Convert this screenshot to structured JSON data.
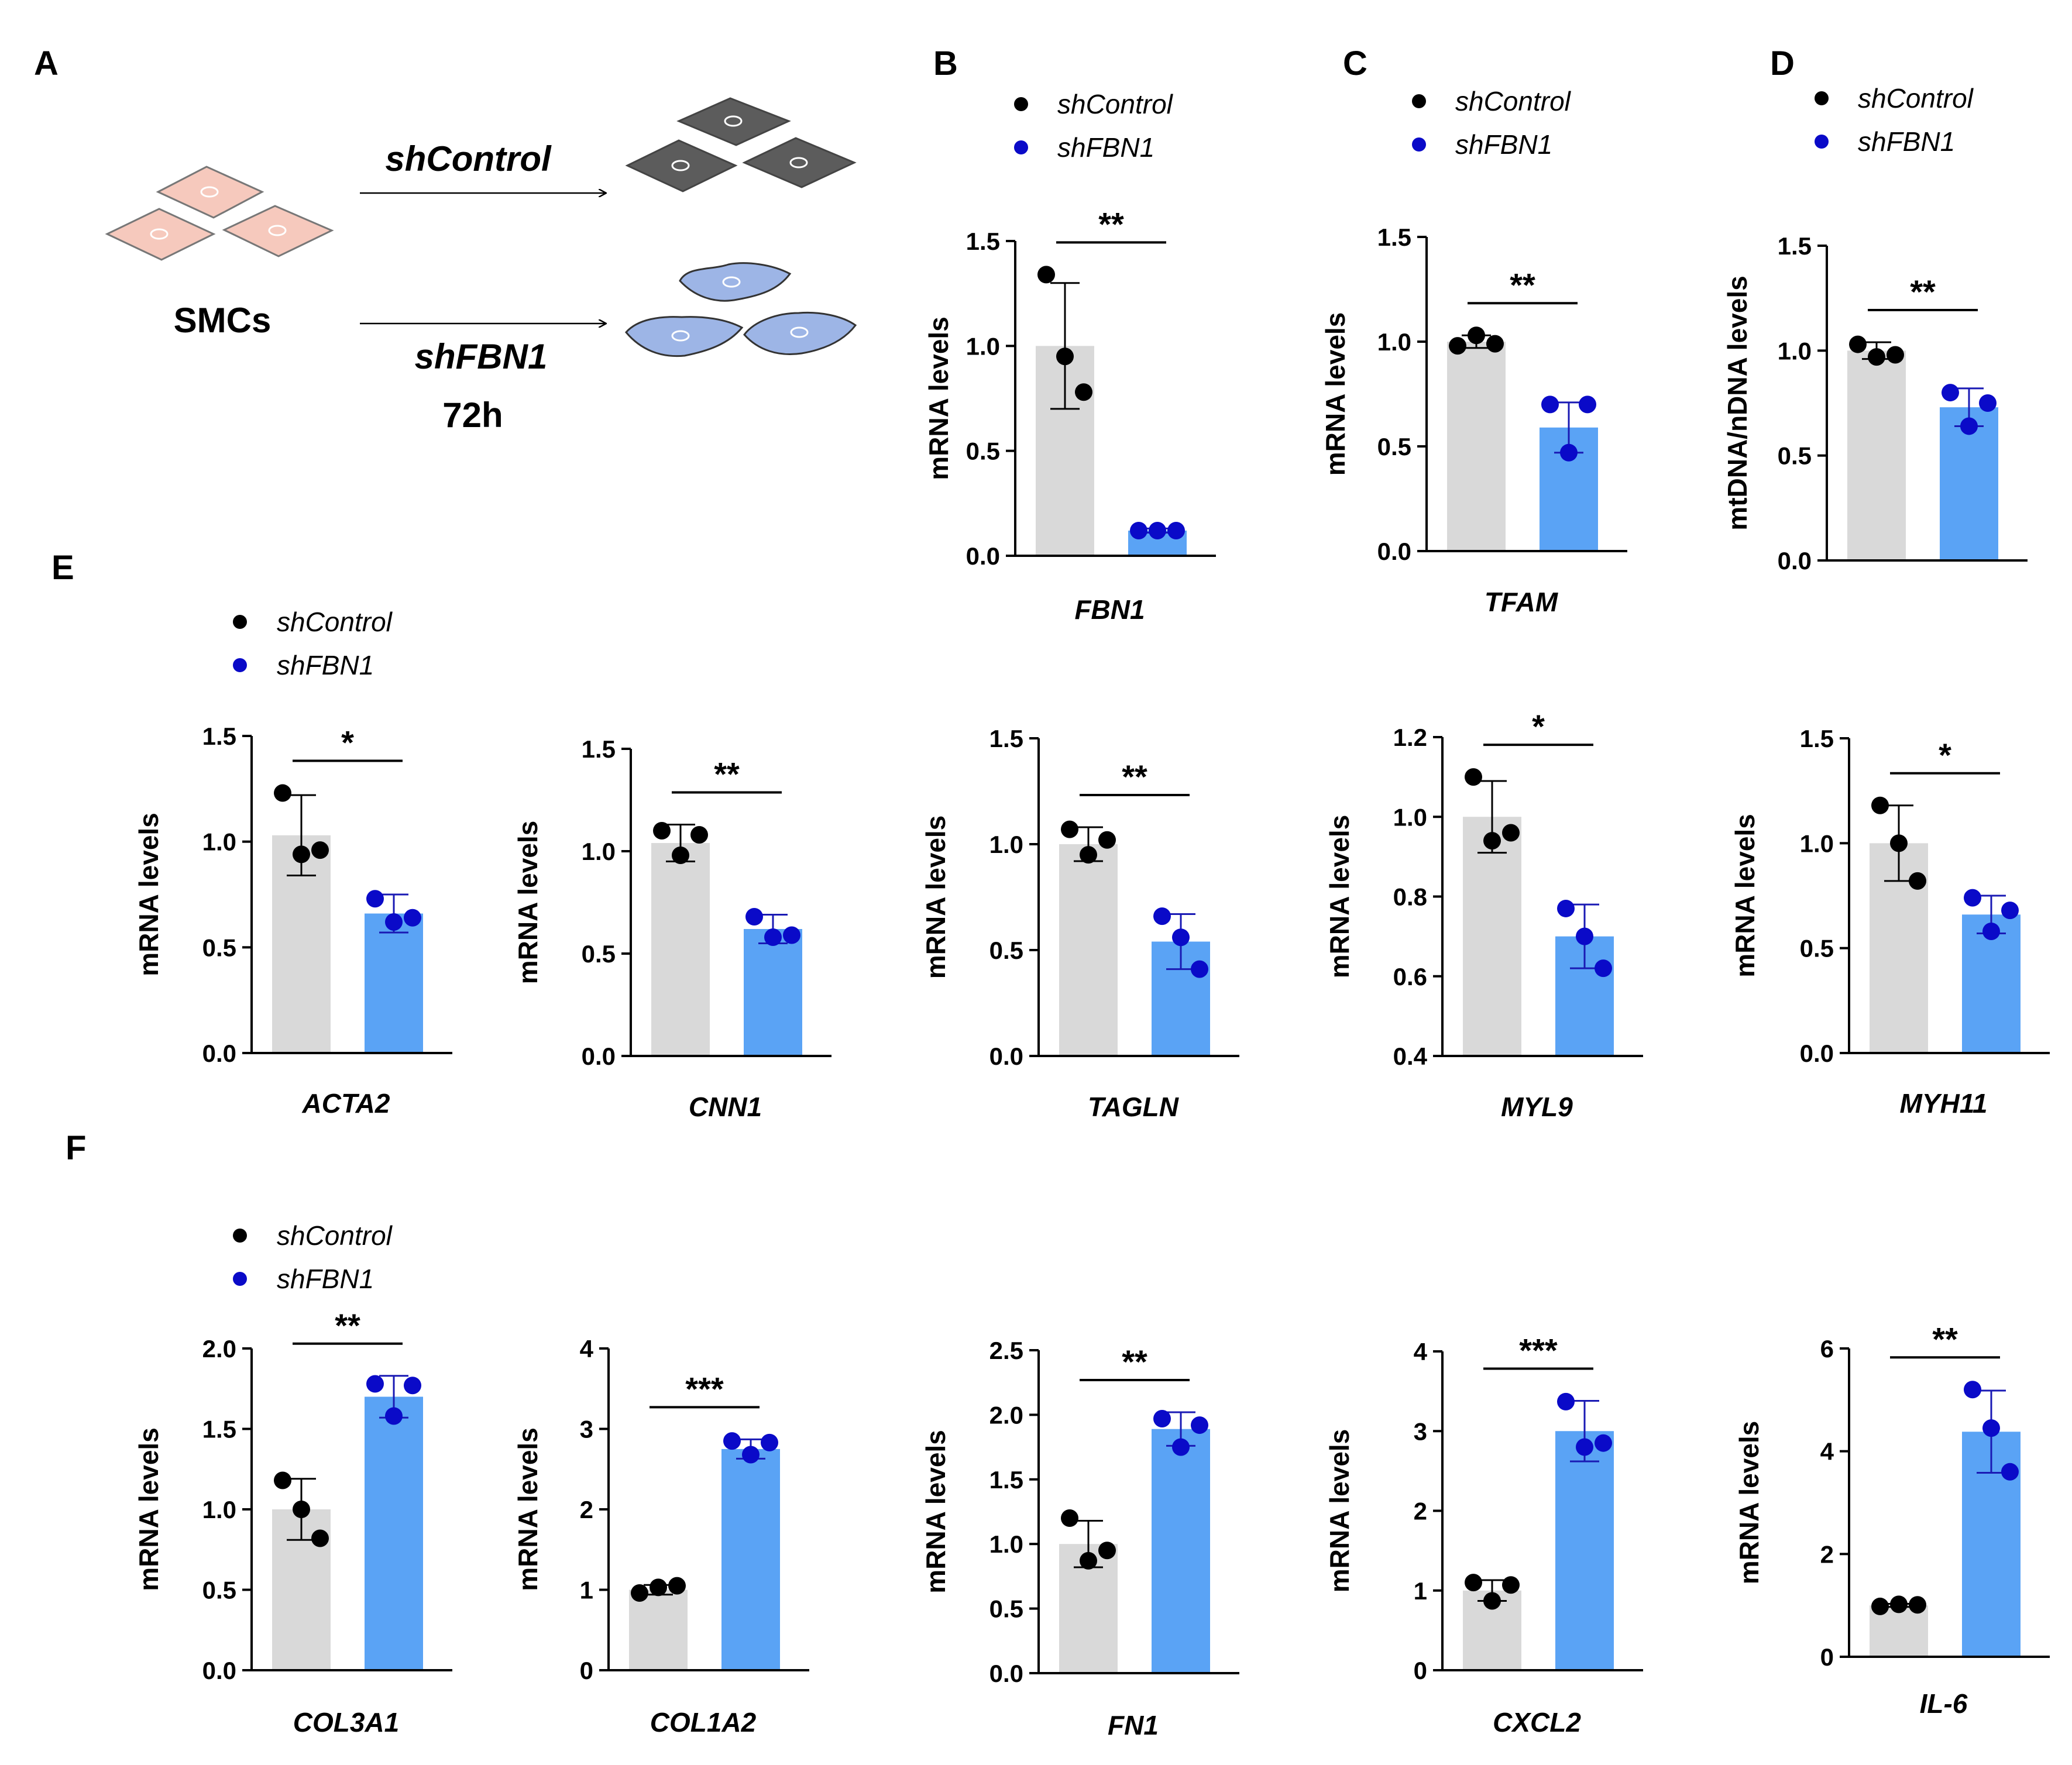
{
  "colors": {
    "control_bar": "#d9d9d9",
    "shfbn1_bar": "#5aa3f5",
    "control_dot": "#000000",
    "shfbn1_dot": "#0a0ac8",
    "shfbn1_errorbar": "#1a1ab4",
    "cell_pink": "#f6c9bd",
    "cell_gray": "#5c5c5c",
    "cell_blue": "#9db5e6"
  },
  "legend": {
    "control": "shControl",
    "shfbn1": "shFBN1"
  },
  "schematic": {
    "panel": "A",
    "cells_label": "SMCs",
    "arrow_top_label": "shControl",
    "arrow_bottom_label": "shFBN1",
    "duration": "72h"
  },
  "panel_labels": {
    "E": "E",
    "F": "F"
  },
  "chart_data": [
    {
      "id": "B",
      "type": "bar",
      "panel": "B",
      "gene": "FBN1",
      "ylabel": "mRNA levels",
      "ylim": [
        0,
        1.5
      ],
      "yticks": [
        "0.0",
        "0.5",
        "1.0",
        "1.5"
      ],
      "categories": [
        "shControl",
        "shFBN1"
      ],
      "series": [
        {
          "name": "shControl",
          "mean": 1.0,
          "sd": 0.3,
          "points": [
            1.34,
            0.95,
            0.78
          ]
        },
        {
          "name": "shFBN1",
          "mean": 0.12,
          "sd": 0.01,
          "points": [
            0.12,
            0.12,
            0.12
          ]
        }
      ],
      "significance": "**"
    },
    {
      "id": "C",
      "type": "bar",
      "panel": "C",
      "gene": "TFAM",
      "ylabel": "mRNA levels",
      "ylim": [
        0,
        1.5
      ],
      "yticks": [
        "0.0",
        "0.5",
        "1.0",
        "1.5"
      ],
      "categories": [
        "shControl",
        "shFBN1"
      ],
      "series": [
        {
          "name": "shControl",
          "mean": 1.0,
          "sd": 0.03,
          "points": [
            0.98,
            1.03,
            0.99
          ]
        },
        {
          "name": "shFBN1",
          "mean": 0.59,
          "sd": 0.12,
          "points": [
            0.7,
            0.47,
            0.7
          ]
        }
      ],
      "significance": "**"
    },
    {
      "id": "D",
      "type": "bar",
      "panel": "D",
      "gene": "",
      "ylabel": "mtDNA/nDNA levels",
      "ylim": [
        0,
        1.5
      ],
      "yticks": [
        "0.0",
        "0.5",
        "1.0",
        "1.5"
      ],
      "categories": [
        "shControl",
        "shFBN1"
      ],
      "series": [
        {
          "name": "shControl",
          "mean": 1.0,
          "sd": 0.04,
          "points": [
            1.03,
            0.97,
            0.98
          ]
        },
        {
          "name": "shFBN1",
          "mean": 0.73,
          "sd": 0.09,
          "points": [
            0.8,
            0.64,
            0.75
          ]
        }
      ],
      "significance": "**"
    },
    {
      "id": "E1",
      "type": "bar",
      "panel": "E",
      "gene": "ACTA2",
      "ylabel": "mRNA levels",
      "ylim": [
        0,
        1.5
      ],
      "yticks": [
        "0.0",
        "0.5",
        "1.0",
        "1.5"
      ],
      "categories": [
        "shControl",
        "shFBN1"
      ],
      "series": [
        {
          "name": "shControl",
          "mean": 1.03,
          "sd": 0.19,
          "points": [
            1.23,
            0.94,
            0.96
          ]
        },
        {
          "name": "shFBN1",
          "mean": 0.66,
          "sd": 0.09,
          "points": [
            0.73,
            0.62,
            0.64
          ]
        }
      ],
      "significance": "*"
    },
    {
      "id": "E2",
      "type": "bar",
      "panel": "E",
      "gene": "CNN1",
      "ylabel": "mRNA levels",
      "ylim": [
        0,
        1.5
      ],
      "yticks": [
        "0.0",
        "0.5",
        "1.0",
        "1.5"
      ],
      "categories": [
        "shControl",
        "shFBN1"
      ],
      "series": [
        {
          "name": "shControl",
          "mean": 1.04,
          "sd": 0.09,
          "points": [
            1.1,
            0.98,
            1.08
          ]
        },
        {
          "name": "shFBN1",
          "mean": 0.62,
          "sd": 0.07,
          "points": [
            0.68,
            0.58,
            0.59
          ]
        }
      ],
      "significance": "**"
    },
    {
      "id": "E3",
      "type": "bar",
      "panel": "E",
      "gene": "TAGLN",
      "ylabel": "mRNA levels",
      "ylim": [
        0,
        1.5
      ],
      "yticks": [
        "0.0",
        "0.5",
        "1.0",
        "1.5"
      ],
      "categories": [
        "shControl",
        "shFBN1"
      ],
      "series": [
        {
          "name": "shControl",
          "mean": 1.0,
          "sd": 0.08,
          "points": [
            1.07,
            0.95,
            1.02
          ]
        },
        {
          "name": "shFBN1",
          "mean": 0.54,
          "sd": 0.13,
          "points": [
            0.66,
            0.56,
            0.41
          ]
        }
      ],
      "significance": "**"
    },
    {
      "id": "E4",
      "type": "bar",
      "panel": "E",
      "gene": "MYL9",
      "ylabel": "mRNA levels",
      "ylim": [
        0.4,
        1.2
      ],
      "yticks": [
        "0.4",
        "0.6",
        "0.8",
        "1.0",
        "1.2"
      ],
      "categories": [
        "shControl",
        "shFBN1"
      ],
      "series": [
        {
          "name": "shControl",
          "mean": 1.0,
          "sd": 0.09,
          "points": [
            1.1,
            0.94,
            0.96
          ]
        },
        {
          "name": "shFBN1",
          "mean": 0.7,
          "sd": 0.08,
          "points": [
            0.77,
            0.7,
            0.62
          ]
        }
      ],
      "significance": "*"
    },
    {
      "id": "E5",
      "type": "bar",
      "panel": "E",
      "gene": "MYH11",
      "ylabel": "mRNA levels",
      "ylim": [
        0,
        1.5
      ],
      "yticks": [
        "0.0",
        "0.5",
        "1.0",
        "1.5"
      ],
      "categories": [
        "shControl",
        "shFBN1"
      ],
      "series": [
        {
          "name": "shControl",
          "mean": 1.0,
          "sd": 0.18,
          "points": [
            1.18,
            1.0,
            0.82
          ]
        },
        {
          "name": "shFBN1",
          "mean": 0.66,
          "sd": 0.09,
          "points": [
            0.74,
            0.58,
            0.68
          ]
        }
      ],
      "significance": "*"
    },
    {
      "id": "F1",
      "type": "bar",
      "panel": "F",
      "gene": "COL3A1",
      "ylabel": "mRNA levels",
      "ylim": [
        0,
        2.0
      ],
      "yticks": [
        "0.0",
        "0.5",
        "1.0",
        "1.5",
        "2.0"
      ],
      "categories": [
        "shControl",
        "shFBN1"
      ],
      "series": [
        {
          "name": "shControl",
          "mean": 1.0,
          "sd": 0.19,
          "points": [
            1.18,
            1.0,
            0.82
          ]
        },
        {
          "name": "shFBN1",
          "mean": 1.7,
          "sd": 0.13,
          "points": [
            1.78,
            1.58,
            1.77
          ]
        }
      ],
      "significance": "**"
    },
    {
      "id": "F2",
      "type": "bar",
      "panel": "F",
      "gene": "COL1A2",
      "ylabel": "mRNA levels",
      "ylim": [
        0,
        4
      ],
      "yticks": [
        "0",
        "1",
        "2",
        "3",
        "4"
      ],
      "categories": [
        "shControl",
        "shFBN1"
      ],
      "series": [
        {
          "name": "shControl",
          "mean": 1.0,
          "sd": 0.06,
          "points": [
            0.96,
            1.03,
            1.05
          ]
        },
        {
          "name": "shFBN1",
          "mean": 2.75,
          "sd": 0.12,
          "points": [
            2.85,
            2.68,
            2.83
          ]
        }
      ],
      "significance": "***"
    },
    {
      "id": "F3",
      "type": "bar",
      "panel": "F",
      "gene": "FN1",
      "ylabel": "mRNA levels",
      "ylim": [
        0,
        2.5
      ],
      "yticks": [
        "0.0",
        "0.5",
        "1.0",
        "1.5",
        "2.0",
        "2.5"
      ],
      "categories": [
        "shControl",
        "shFBN1"
      ],
      "series": [
        {
          "name": "shControl",
          "mean": 1.0,
          "sd": 0.18,
          "points": [
            1.2,
            0.87,
            0.95
          ]
        },
        {
          "name": "shFBN1",
          "mean": 1.89,
          "sd": 0.13,
          "points": [
            1.97,
            1.75,
            1.92
          ]
        }
      ],
      "significance": "**"
    },
    {
      "id": "F4",
      "type": "bar",
      "panel": "F",
      "gene": "CXCL2",
      "ylabel": "mRNA levels",
      "ylim": [
        0,
        4
      ],
      "yticks": [
        "0",
        "1",
        "2",
        "3",
        "4"
      ],
      "categories": [
        "shControl",
        "shFBN1"
      ],
      "series": [
        {
          "name": "shControl",
          "mean": 1.0,
          "sd": 0.13,
          "points": [
            1.1,
            0.87,
            1.07
          ]
        },
        {
          "name": "shFBN1",
          "mean": 3.0,
          "sd": 0.38,
          "points": [
            3.37,
            2.8,
            2.85
          ]
        }
      ],
      "significance": "***"
    },
    {
      "id": "F5",
      "type": "bar",
      "panel": "F",
      "gene": "IL-6",
      "ylabel": "mRNA levels",
      "ylim": [
        0,
        6
      ],
      "yticks": [
        "0",
        "2",
        "4",
        "6"
      ],
      "categories": [
        "shControl",
        "shFBN1"
      ],
      "series": [
        {
          "name": "shControl",
          "mean": 1.0,
          "sd": 0.03,
          "points": [
            0.98,
            1.02,
            1.01
          ]
        },
        {
          "name": "shFBN1",
          "mean": 4.38,
          "sd": 0.8,
          "points": [
            5.2,
            4.45,
            3.6
          ]
        }
      ],
      "significance": "**"
    }
  ]
}
